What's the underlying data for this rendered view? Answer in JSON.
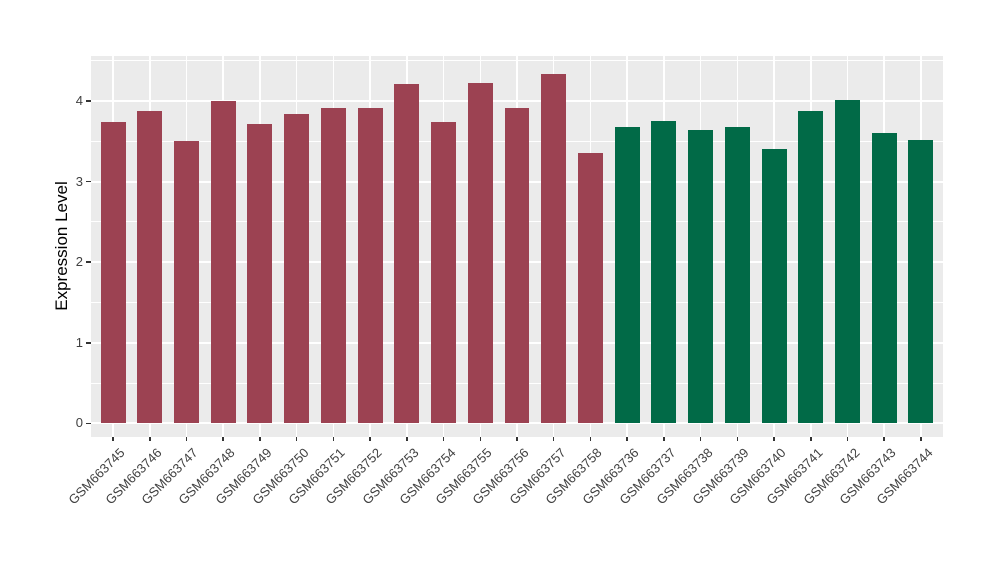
{
  "chart_data": {
    "type": "bar",
    "title": "",
    "xlabel": "",
    "ylabel": "Expression Level",
    "ylim": [
      -0.17,
      4.56
    ],
    "yticks": [
      0,
      1,
      2,
      3,
      4
    ],
    "yminor": [
      0.5,
      1.5,
      2.5,
      3.5,
      4.5
    ],
    "grid": true,
    "legend": "none",
    "panel_background": "#EBEBEB",
    "gridline_color": "#FFFFFF",
    "group_colors": {
      "maroon": "#9C4252",
      "green": "#016A47"
    },
    "bars": [
      {
        "label": "GSM663745",
        "value": 3.74,
        "group": "maroon"
      },
      {
        "label": "GSM663746",
        "value": 3.88,
        "group": "maroon"
      },
      {
        "label": "GSM663747",
        "value": 3.5,
        "group": "maroon"
      },
      {
        "label": "GSM663748",
        "value": 4.0,
        "group": "maroon"
      },
      {
        "label": "GSM663749",
        "value": 3.71,
        "group": "maroon"
      },
      {
        "label": "GSM663750",
        "value": 3.84,
        "group": "maroon"
      },
      {
        "label": "GSM663751",
        "value": 3.92,
        "group": "maroon"
      },
      {
        "label": "GSM663752",
        "value": 3.91,
        "group": "maroon"
      },
      {
        "label": "GSM663753",
        "value": 4.21,
        "group": "maroon"
      },
      {
        "label": "GSM663754",
        "value": 3.74,
        "group": "maroon"
      },
      {
        "label": "GSM663755",
        "value": 4.23,
        "group": "maroon"
      },
      {
        "label": "GSM663756",
        "value": 3.91,
        "group": "maroon"
      },
      {
        "label": "GSM663757",
        "value": 4.34,
        "group": "maroon"
      },
      {
        "label": "GSM663758",
        "value": 3.36,
        "group": "maroon"
      },
      {
        "label": "GSM663736",
        "value": 3.68,
        "group": "green"
      },
      {
        "label": "GSM663737",
        "value": 3.75,
        "group": "green"
      },
      {
        "label": "GSM663738",
        "value": 3.64,
        "group": "green"
      },
      {
        "label": "GSM663739",
        "value": 3.68,
        "group": "green"
      },
      {
        "label": "GSM663740",
        "value": 3.41,
        "group": "green"
      },
      {
        "label": "GSM663741",
        "value": 3.88,
        "group": "green"
      },
      {
        "label": "GSM663742",
        "value": 4.01,
        "group": "green"
      },
      {
        "label": "GSM663743",
        "value": 3.6,
        "group": "green"
      },
      {
        "label": "GSM663744",
        "value": 3.52,
        "group": "green"
      }
    ]
  }
}
